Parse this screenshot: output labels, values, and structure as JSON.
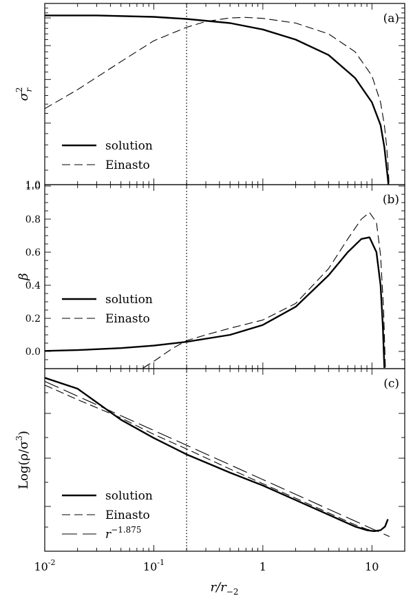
{
  "chart_data": {
    "type": "line",
    "xlabel": "r/r",
    "xlabel_sub": "−2",
    "x_scale": "log",
    "xlim": [
      0.01,
      20
    ],
    "x_tick_labels": [
      {
        "value": 0.01,
        "base": "10",
        "exp": "-2"
      },
      {
        "value": 0.1,
        "base": "10",
        "exp": "-1"
      },
      {
        "value": 1,
        "base": "1",
        "exp": ""
      },
      {
        "value": 10,
        "base": "10",
        "exp": ""
      }
    ],
    "vline": {
      "x": 0.2,
      "style": "dotted"
    },
    "panels": [
      {
        "id": "a",
        "panel_label": "(a)",
        "ylabel": "σ",
        "ylabel_sup": "2",
        "ylabel_sub": "r",
        "y_scale": "log",
        "ylim": [
          1.0,
          3.3
        ],
        "y_tick_labels": [
          {
            "value": 1.0,
            "text": "1.0"
          }
        ],
        "series": [
          {
            "name": "solution",
            "style": "solid",
            "x": [
              0.01,
              0.03,
              0.1,
              0.2,
              0.5,
              1,
              2,
              4,
              7,
              10,
              12,
              13,
              13.5,
              14,
              14.2
            ],
            "y": [
              3.05,
              3.05,
              3.02,
              2.98,
              2.9,
              2.78,
              2.6,
              2.35,
              2.02,
              1.72,
              1.48,
              1.28,
              1.15,
              1.04,
              1.0
            ]
          },
          {
            "name": "Einasto",
            "style": "dashed",
            "x": [
              0.01,
              0.02,
              0.05,
              0.1,
              0.2,
              0.3,
              0.5,
              0.7,
              1,
              2,
              4,
              7,
              10,
              12,
              13,
              13.6,
              14.1,
              14.4
            ],
            "y": [
              1.65,
              1.87,
              2.25,
              2.58,
              2.82,
              2.93,
              3.0,
              3.01,
              2.99,
              2.9,
              2.7,
              2.4,
              2.05,
              1.72,
              1.48,
              1.3,
              1.13,
              1.0
            ]
          }
        ]
      },
      {
        "id": "b",
        "panel_label": "(b)",
        "ylabel": "β",
        "y_scale": "linear",
        "ylim": [
          -0.1,
          1.0
        ],
        "y_tick_labels": [
          {
            "value": 0.0,
            "text": "0.0"
          },
          {
            "value": 0.2,
            "text": "0.2"
          },
          {
            "value": 0.4,
            "text": "0.4"
          },
          {
            "value": 0.6,
            "text": "0.6"
          },
          {
            "value": 0.8,
            "text": "0.8"
          },
          {
            "value": 1.0,
            "text": "1.0"
          }
        ],
        "series": [
          {
            "name": "solution",
            "style": "solid",
            "x": [
              0.01,
              0.02,
              0.05,
              0.1,
              0.2,
              0.5,
              1,
              2,
              4,
              6,
              8,
              9.5,
              11,
              12,
              12.6,
              13.0
            ],
            "y": [
              0.003,
              0.008,
              0.02,
              0.035,
              0.058,
              0.1,
              0.16,
              0.27,
              0.46,
              0.6,
              0.68,
              0.69,
              0.6,
              0.4,
              0.15,
              -0.1
            ]
          },
          {
            "name": "Einasto",
            "style": "dashed",
            "x": [
              0.08,
              0.1,
              0.15,
              0.2,
              0.3,
              0.5,
              1,
              2,
              4,
              6,
              8,
              9.5,
              11,
              12,
              12.8,
              13.3
            ],
            "y": [
              -0.1,
              -0.06,
              0.02,
              0.065,
              0.1,
              0.14,
              0.19,
              0.29,
              0.5,
              0.68,
              0.8,
              0.84,
              0.78,
              0.58,
              0.25,
              -0.1
            ]
          }
        ]
      },
      {
        "id": "c",
        "panel_label": "(c)",
        "ylabel": "Log(ρ/σ",
        "ylabel_sup": "3",
        "ylabel_tail": ")",
        "y_scale": "linear",
        "ylim": [
          0.0,
          1.0
        ],
        "y_tick_labels": [],
        "series": [
          {
            "name": "solution",
            "style": "solid",
            "x": [
              0.01,
              0.02,
              0.05,
              0.1,
              0.2,
              0.5,
              1,
              2,
              4,
              7,
              9,
              10.5,
              12,
              13.2,
              14.0
            ],
            "y": [
              0.95,
              0.89,
              0.72,
              0.62,
              0.53,
              0.43,
              0.36,
              0.28,
              0.2,
              0.135,
              0.115,
              0.11,
              0.115,
              0.135,
              0.175
            ]
          },
          {
            "name": "Einasto",
            "style": "dashed",
            "x": [
              0.01,
              0.02,
              0.05,
              0.1,
              0.2,
              0.5,
              1,
              2,
              4,
              7,
              9,
              10.5,
              12,
              13.2,
              14.0
            ],
            "y": [
              0.91,
              0.83,
              0.73,
              0.64,
              0.56,
              0.45,
              0.37,
              0.29,
              0.21,
              0.145,
              0.12,
              0.112,
              0.117,
              0.137,
              0.176
            ]
          },
          {
            "name": "r",
            "name_sup": "−1.875",
            "style": "longdash",
            "x": [
              0.01,
              14.5
            ],
            "y": [
              0.93,
              0.08
            ]
          }
        ]
      }
    ]
  }
}
